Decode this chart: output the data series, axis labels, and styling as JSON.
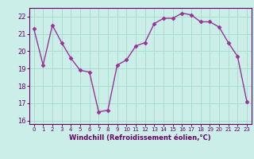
{
  "x": [
    0,
    1,
    2,
    3,
    4,
    5,
    6,
    7,
    8,
    9,
    10,
    11,
    12,
    13,
    14,
    15,
    16,
    17,
    18,
    19,
    20,
    21,
    22,
    23
  ],
  "y": [
    21.3,
    19.2,
    21.5,
    20.5,
    19.6,
    18.9,
    18.8,
    16.5,
    16.6,
    19.2,
    19.5,
    20.3,
    20.5,
    21.6,
    21.9,
    21.9,
    22.2,
    22.1,
    21.7,
    21.7,
    21.4,
    20.5,
    19.7,
    17.1
  ],
  "line_color": "#993399",
  "marker": "D",
  "marker_size": 2.5,
  "bg_color": "#cceee8",
  "grid_color": "#aaddcc",
  "xlabel": "Windchill (Refroidissement éolien,°C)",
  "xlabel_color": "#660066",
  "tick_color": "#660066",
  "ylim": [
    15.8,
    22.5
  ],
  "yticks": [
    16,
    17,
    18,
    19,
    20,
    21,
    22
  ],
  "xlim": [
    -0.5,
    23.5
  ],
  "xticks": [
    0,
    1,
    2,
    3,
    4,
    5,
    6,
    7,
    8,
    9,
    10,
    11,
    12,
    13,
    14,
    15,
    16,
    17,
    18,
    19,
    20,
    21,
    22,
    23
  ]
}
